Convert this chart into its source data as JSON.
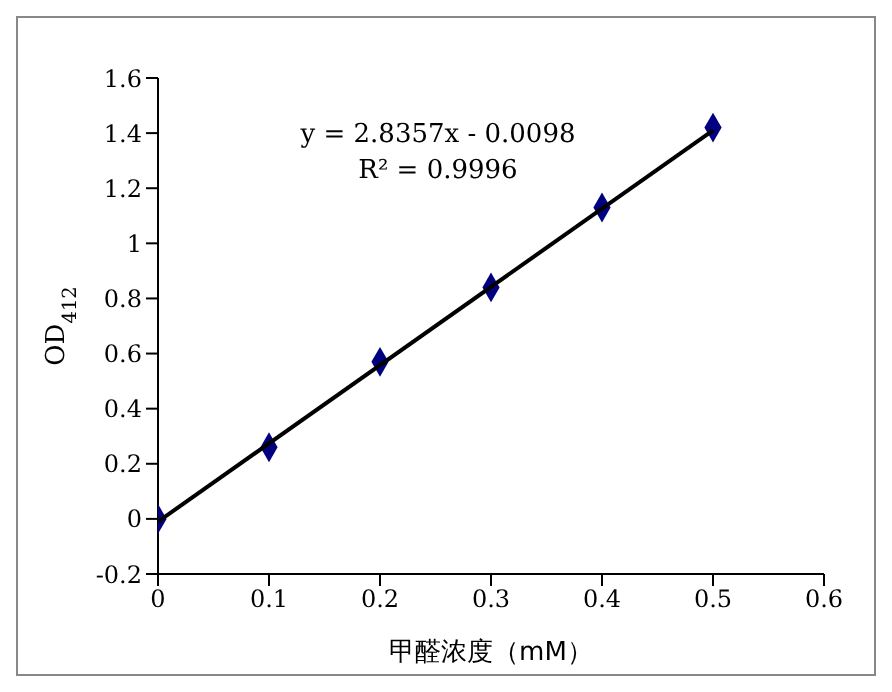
{
  "chart_data": {
    "type": "scatter",
    "xlabel": "甲醛浓度（mM）",
    "ylabel": "OD$_{412}$",
    "annotations": [
      "y = 2.8357x - 0.0098",
      "R² = 0.9996"
    ],
    "xlim": [
      0,
      0.6
    ],
    "xticks": [
      0,
      0.1,
      0.2,
      0.3,
      0.4,
      0.5,
      0.6
    ],
    "ylim": [
      -0.2,
      1.6
    ],
    "yticks": [
      -0.2,
      0,
      0.2,
      0.4,
      0.6,
      0.8,
      1,
      1.2,
      1.4,
      1.6
    ],
    "grid": false,
    "legend": false,
    "series": [
      {
        "type": "scatter",
        "color": "#000080",
        "marker": "diamond",
        "x": [
          0,
          0.1,
          0.2,
          0.3,
          0.4,
          0.5
        ],
        "values": [
          0,
          0.26,
          0.57,
          0.84,
          1.13,
          1.42
        ]
      },
      {
        "type": "line",
        "color": "#000000",
        "marker": "none",
        "line_style": "solid",
        "x": [
          0,
          0.5
        ],
        "values": [
          -0.01,
          1.41
        ]
      }
    ]
  }
}
